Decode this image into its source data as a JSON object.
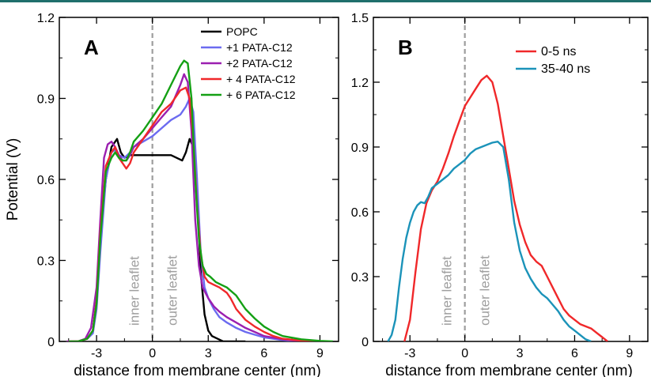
{
  "header_bar_color": "#1f6f6c",
  "chart_data": [
    {
      "panel": "A",
      "type": "line",
      "xlabel": "distance from membrane center (nm)",
      "ylabel": "Potential (V)",
      "xlim": [
        -5,
        10
      ],
      "ylim": [
        0,
        1.2
      ],
      "xticks": [
        -3,
        0,
        3,
        6,
        9
      ],
      "yticks": [
        0,
        0.3,
        0.6,
        0.9,
        1.2
      ],
      "ytick_labels": [
        "0",
        "0.3",
        "0.6",
        "0.9",
        "1.2"
      ],
      "grid": false,
      "legend_position": "top-right",
      "annotations": {
        "left": "inner leaflet",
        "right": "outer leaflet",
        "divider_x": 0
      },
      "series": [
        {
          "name": "POPC",
          "color": "#000000",
          "x": [
            -4.4,
            -4,
            -3.5,
            -3.2,
            -3,
            -2.8,
            -2.5,
            -2.2,
            -1.9,
            -1.7,
            -1.5,
            -1.2,
            -1,
            -0.5,
            0,
            0.5,
            1,
            1.3,
            1.6,
            1.8,
            2,
            2.2,
            2.4,
            2.6,
            2.8,
            3,
            3.2,
            3.5,
            3.8,
            4,
            4.5,
            5
          ],
          "y": [
            0,
            0,
            0.01,
            0.04,
            0.15,
            0.38,
            0.6,
            0.72,
            0.75,
            0.7,
            0.68,
            0.69,
            0.69,
            0.69,
            0.69,
            0.69,
            0.69,
            0.68,
            0.67,
            0.7,
            0.75,
            0.72,
            0.55,
            0.25,
            0.1,
            0.04,
            0.02,
            0.01,
            0,
            0,
            0,
            0
          ]
        },
        {
          "name": "+1 PATA-C12",
          "color": "#6b6bf0",
          "x": [
            -4.5,
            -4,
            -3.5,
            -3.2,
            -3,
            -2.8,
            -2.5,
            -2.2,
            -2,
            -1.8,
            -1.5,
            -1.2,
            -1,
            -0.5,
            0,
            0.5,
            1,
            1.5,
            1.8,
            2,
            2.2,
            2.4,
            2.6,
            2.8,
            3,
            3.3,
            3.6,
            4,
            4.5,
            5,
            5.5,
            6,
            7,
            8
          ],
          "y": [
            0,
            0,
            0.01,
            0.03,
            0.12,
            0.33,
            0.6,
            0.7,
            0.71,
            0.69,
            0.68,
            0.7,
            0.72,
            0.74,
            0.76,
            0.79,
            0.82,
            0.84,
            0.87,
            0.9,
            0.85,
            0.6,
            0.32,
            0.2,
            0.16,
            0.12,
            0.09,
            0.07,
            0.05,
            0.035,
            0.025,
            0.015,
            0.005,
            0
          ]
        },
        {
          "name": "+2 PATA-C12",
          "color": "#9b1fb0",
          "x": [
            -4.6,
            -4,
            -3.6,
            -3.3,
            -3,
            -2.8,
            -2.6,
            -2.4,
            -2.2,
            -2,
            -1.8,
            -1.6,
            -1.4,
            -1.2,
            -1,
            -0.5,
            0,
            0.5,
            1,
            1.5,
            1.7,
            1.9,
            2.1,
            2.3,
            2.5,
            2.7,
            3,
            3.3,
            3.6,
            4,
            4.5,
            5,
            6,
            7,
            8
          ],
          "y": [
            0,
            0,
            0.01,
            0.05,
            0.2,
            0.45,
            0.68,
            0.73,
            0.74,
            0.72,
            0.69,
            0.67,
            0.67,
            0.69,
            0.72,
            0.75,
            0.79,
            0.83,
            0.87,
            0.95,
            0.99,
            0.96,
            0.78,
            0.45,
            0.28,
            0.2,
            0.16,
            0.13,
            0.11,
            0.09,
            0.07,
            0.05,
            0.02,
            0.008,
            0
          ]
        },
        {
          "name": "+ 4 PATA-C12",
          "color": "#f0282a",
          "x": [
            -4.5,
            -4,
            -3.5,
            -3.2,
            -3,
            -2.8,
            -2.5,
            -2.2,
            -2,
            -1.8,
            -1.6,
            -1.4,
            -1.2,
            -1,
            -0.5,
            0,
            0.5,
            1,
            1.5,
            1.8,
            2,
            2.2,
            2.4,
            2.6,
            2.8,
            3,
            3.3,
            3.6,
            4,
            4.2,
            4.5,
            5,
            5.5,
            6,
            6.5,
            7,
            8,
            9
          ],
          "y": [
            0,
            0,
            0.01,
            0.04,
            0.15,
            0.4,
            0.65,
            0.7,
            0.72,
            0.68,
            0.66,
            0.64,
            0.66,
            0.7,
            0.75,
            0.8,
            0.85,
            0.88,
            0.93,
            0.94,
            0.9,
            0.75,
            0.5,
            0.32,
            0.24,
            0.22,
            0.21,
            0.2,
            0.18,
            0.16,
            0.12,
            0.08,
            0.055,
            0.035,
            0.02,
            0.01,
            0.003,
            0
          ]
        },
        {
          "name": "+ 6 PATA-C12",
          "color": "#14a014",
          "x": [
            -4.5,
            -4,
            -3.5,
            -3.2,
            -3,
            -2.8,
            -2.5,
            -2.2,
            -2,
            -1.8,
            -1.6,
            -1.4,
            -1.2,
            -1,
            -0.5,
            0,
            0.5,
            1,
            1.5,
            1.7,
            1.9,
            2.1,
            2.3,
            2.5,
            2.7,
            2.9,
            3.1,
            3.4,
            3.7,
            4,
            4.5,
            5,
            5.5,
            6,
            6.5,
            7,
            8,
            9,
            9.7
          ],
          "y": [
            0,
            0,
            0.01,
            0.04,
            0.14,
            0.38,
            0.63,
            0.68,
            0.7,
            0.68,
            0.67,
            0.67,
            0.7,
            0.74,
            0.78,
            0.83,
            0.88,
            0.95,
            1.02,
            1.04,
            1.03,
            0.9,
            0.6,
            0.38,
            0.28,
            0.25,
            0.24,
            0.22,
            0.21,
            0.2,
            0.17,
            0.12,
            0.085,
            0.055,
            0.035,
            0.02,
            0.008,
            0.002,
            0
          ]
        }
      ]
    },
    {
      "panel": "B",
      "type": "line",
      "xlabel": "distance from membrane center (nm)",
      "ylabel": "",
      "xlim": [
        -5,
        10
      ],
      "ylim": [
        0,
        1.5
      ],
      "xticks": [
        -3,
        0,
        3,
        6,
        9
      ],
      "yticks": [
        0,
        0.3,
        0.6,
        0.9,
        1.2,
        1.5
      ],
      "ytick_labels": [
        "0",
        "0.3",
        "0.6",
        "0.9",
        "1.2",
        "1.5"
      ],
      "grid": false,
      "legend_position": "top-right",
      "annotations": {
        "left": "inner leaflet",
        "right": "outer leaflet",
        "divider_x": 0
      },
      "series": [
        {
          "name": "0-5 ns",
          "color": "#f0282a",
          "x": [
            -3.3,
            -3,
            -2.7,
            -2.4,
            -2.1,
            -1.8,
            -1.5,
            -1.2,
            -0.9,
            -0.6,
            -0.3,
            0,
            0.3,
            0.6,
            0.9,
            1.2,
            1.5,
            1.8,
            2.1,
            2.4,
            2.7,
            3,
            3.3,
            3.6,
            3.9,
            4.2,
            4.5,
            4.8,
            5.1,
            5.4,
            5.7,
            6,
            6.3,
            6.6,
            6.9,
            7.2,
            7.5,
            7.8
          ],
          "y": [
            0,
            0.1,
            0.32,
            0.52,
            0.64,
            0.7,
            0.74,
            0.8,
            0.87,
            0.95,
            1.02,
            1.09,
            1.13,
            1.17,
            1.21,
            1.23,
            1.2,
            1.1,
            0.95,
            0.8,
            0.65,
            0.54,
            0.46,
            0.4,
            0.37,
            0.35,
            0.3,
            0.25,
            0.2,
            0.15,
            0.12,
            0.1,
            0.08,
            0.07,
            0.06,
            0.04,
            0.02,
            0
          ]
        },
        {
          "name": "35-40 ns",
          "color": "#1b93b9",
          "x": [
            -4.2,
            -4,
            -3.8,
            -3.6,
            -3.4,
            -3.2,
            -3,
            -2.8,
            -2.6,
            -2.4,
            -2.2,
            -2,
            -1.8,
            -1.5,
            -1.2,
            -0.9,
            -0.6,
            -0.3,
            0,
            0.3,
            0.6,
            0.9,
            1.2,
            1.5,
            1.8,
            2.1,
            2.4,
            2.7,
            3,
            3.3,
            3.6,
            3.9,
            4.2,
            4.5,
            4.8,
            5.1,
            5.4,
            5.7,
            6,
            6.3,
            6.6,
            6.9
          ],
          "y": [
            0,
            0.03,
            0.1,
            0.25,
            0.38,
            0.48,
            0.55,
            0.6,
            0.63,
            0.645,
            0.64,
            0.67,
            0.71,
            0.73,
            0.75,
            0.77,
            0.8,
            0.82,
            0.84,
            0.87,
            0.89,
            0.9,
            0.91,
            0.92,
            0.925,
            0.9,
            0.75,
            0.55,
            0.42,
            0.34,
            0.29,
            0.25,
            0.22,
            0.2,
            0.17,
            0.14,
            0.1,
            0.07,
            0.05,
            0.03,
            0.01,
            0
          ]
        }
      ]
    }
  ]
}
